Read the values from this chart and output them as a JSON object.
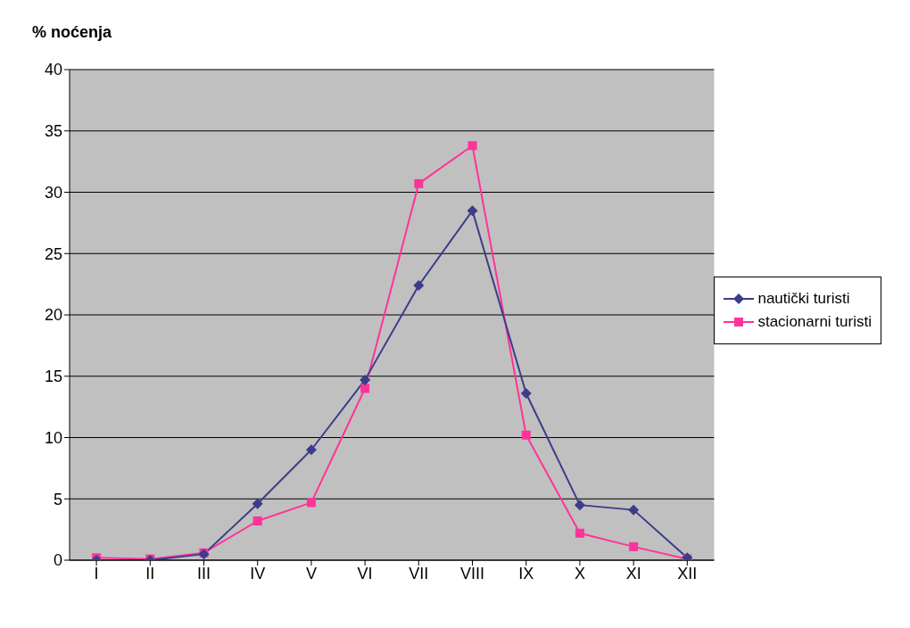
{
  "chart_data": {
    "type": "line",
    "ylabel": "% noćenja",
    "categories": [
      "I",
      "II",
      "III",
      "IV",
      "V",
      "VI",
      "VII",
      "VIII",
      "IX",
      "X",
      "XI",
      "XII"
    ],
    "series": [
      {
        "name": "nautički turisti",
        "color": "#3c3c8c",
        "marker": "diamond",
        "values": [
          0,
          0,
          0.5,
          4.6,
          9,
          14.7,
          22.4,
          28.5,
          13.6,
          4.5,
          4.1,
          0.2
        ]
      },
      {
        "name": "stacionarni turisti",
        "color": "#ff3399",
        "marker": "square",
        "values": [
          0.2,
          0.1,
          0.6,
          3.2,
          4.7,
          14,
          30.7,
          33.8,
          10.2,
          2.2,
          1.1,
          0.1
        ]
      }
    ],
    "ylim": [
      0,
      40
    ],
    "yticks": [
      0,
      5,
      10,
      15,
      20,
      25,
      30,
      35,
      40
    ],
    "grid": "y",
    "legend": "right"
  }
}
